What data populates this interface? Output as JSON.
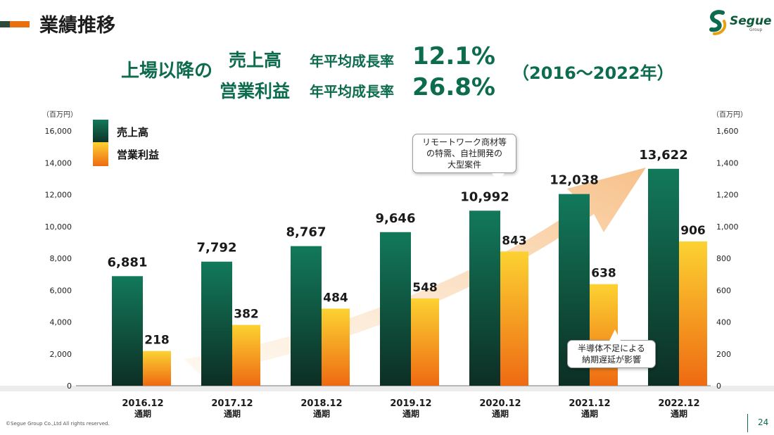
{
  "header": {
    "title": "業績推移"
  },
  "logo": {
    "name": "Segue",
    "sub": "Group"
  },
  "headline": {
    "lead": "上場以降の",
    "rows": [
      {
        "label": "売上高",
        "rate_label": "年平均成長率",
        "value": "12.1%"
      },
      {
        "label": "営業利益",
        "rate_label": "年平均成長率",
        "value": "26.8%"
      }
    ],
    "period": "（2016～2022年）"
  },
  "units": {
    "left": "（百万円）",
    "right": "（百万円）"
  },
  "callouts": {
    "remote_work": [
      "リモートワーク商材等",
      "の特需、自社開発の",
      "大型案件"
    ],
    "semiconductor": [
      "半導体不足による",
      "納期遅延が影響"
    ]
  },
  "footer": {
    "copyright": "©Segue Group Co.,Ltd All rights reserved.",
    "page": "24"
  },
  "colors": {
    "accent_green": "#0d6b4e",
    "bar_green_top": "#12795a",
    "bar_green_bottom": "#0d2e24",
    "bar_orange_top": "#fcd232",
    "bar_orange_bottom": "#ee6a12",
    "title_bar": "#e8700f"
  },
  "chart_data": {
    "type": "bar",
    "categories": [
      [
        "2016.12",
        "通期"
      ],
      [
        "2017.12",
        "通期"
      ],
      [
        "2018.12",
        "通期"
      ],
      [
        "2019.12",
        "通期"
      ],
      [
        "2020.12",
        "通期"
      ],
      [
        "2021.12",
        "通期"
      ],
      [
        "2022.12",
        "通期"
      ]
    ],
    "series": [
      {
        "name": "売上高",
        "axis": "left",
        "values": [
          6881,
          7792,
          8767,
          9646,
          10992,
          12038,
          13622
        ],
        "labels": [
          "6,881",
          "7,792",
          "8,767",
          "9,646",
          "10,992",
          "12,038",
          "13,622"
        ]
      },
      {
        "name": "営業利益",
        "axis": "right",
        "values": [
          218,
          382,
          484,
          548,
          843,
          638,
          906
        ],
        "labels": [
          "218",
          "382",
          "484",
          "548",
          "843",
          "638",
          "906"
        ]
      }
    ],
    "y_left": {
      "min": 0,
      "max": 16000,
      "ticks": [
        "0",
        "2,000",
        "4,000",
        "6,000",
        "8,000",
        "10,000",
        "12,000",
        "14,000",
        "16,000"
      ]
    },
    "y_right": {
      "min": 0,
      "max": 1600,
      "ticks": [
        "0",
        "200",
        "400",
        "600",
        "800",
        "1,000",
        "1,200",
        "1,400",
        "1,600"
      ]
    },
    "legend": "top-left",
    "grid": false
  }
}
